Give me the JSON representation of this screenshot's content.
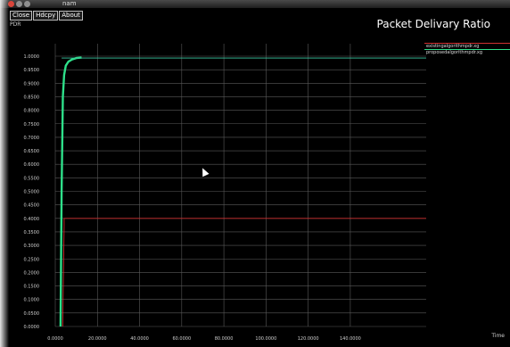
{
  "window": {
    "title": "nam"
  },
  "toolbar": {
    "buttons": [
      "Close",
      "Hdcpy",
      "About"
    ]
  },
  "chart_data": {
    "type": "line",
    "title": "Packet Delivary Ratio",
    "xlabel": "Time",
    "ylabel": "PDR",
    "xlim": [
      0,
      176000
    ],
    "ylim": [
      0,
      1.0
    ],
    "x_ticks": [
      0,
      20000,
      40000,
      60000,
      80000,
      100000,
      120000,
      140000
    ],
    "x_tick_labels": [
      "0.0000",
      "20.0000",
      "40.0000",
      "60.0000",
      "80.0000",
      "100.0000",
      "120.0000",
      "140.0000"
    ],
    "y_ticks": [
      0.0,
      0.05,
      0.1,
      0.15,
      0.2,
      0.25,
      0.3,
      0.35,
      0.4,
      0.45,
      0.5,
      0.55,
      0.6,
      0.65,
      0.7,
      0.75,
      0.8,
      0.85,
      0.9,
      0.95,
      1.0
    ],
    "y_tick_labels": [
      "0.0000",
      "0.0500",
      "0.1000",
      "0.1500",
      "0.2000",
      "0.2500",
      "0.3000",
      "0.3500",
      "0.4000",
      "0.4500",
      "0.5000",
      "0.5500",
      "0.6000",
      "0.6500",
      "0.7000",
      "0.7500",
      "0.8000",
      "0.8500",
      "0.9000",
      "0.9500",
      "1.0000"
    ],
    "grid": true,
    "legend_position": "top-right",
    "series": [
      {
        "name": "existingalgorithmpdr.xg",
        "color": "#d03030",
        "points": [
          [
            3500,
            0.0
          ],
          [
            4200,
            0.37
          ],
          [
            4200,
            0.4
          ],
          [
            176000,
            0.4
          ]
        ]
      },
      {
        "name": "proposedalgorithmpdr.xg",
        "color": "#2ee08a",
        "points": [
          [
            2500,
            0.0
          ],
          [
            3000,
            0.5
          ],
          [
            3600,
            0.85
          ],
          [
            4200,
            0.93
          ],
          [
            5000,
            0.965
          ],
          [
            6200,
            0.98
          ],
          [
            8000,
            0.988
          ],
          [
            10000,
            0.993
          ],
          [
            12500,
            0.995
          ]
        ]
      },
      {
        "name": "",
        "color": "#39c7a0",
        "points": [
          [
            3000,
            0.993
          ],
          [
            176000,
            0.993
          ]
        ]
      }
    ]
  }
}
